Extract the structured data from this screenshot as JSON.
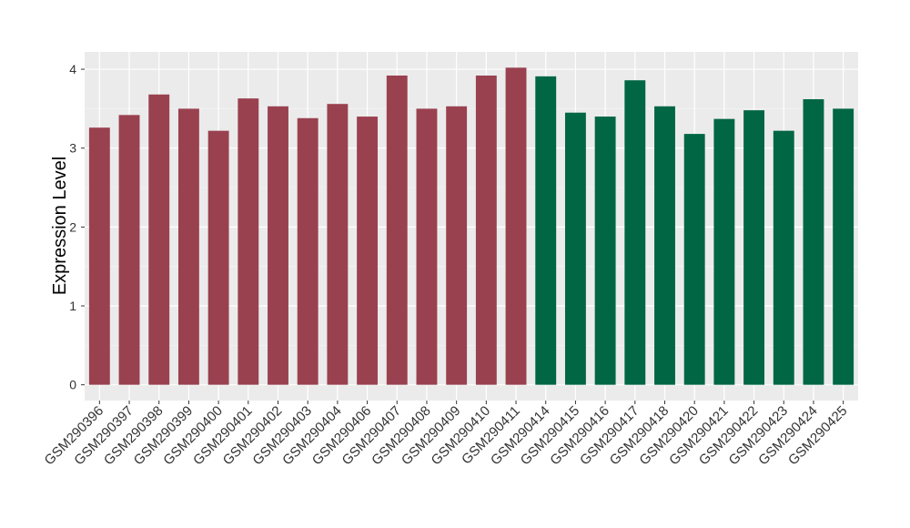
{
  "chart_data": {
    "type": "bar",
    "y_label": "Expression Level",
    "categories": [
      "GSM290396",
      "GSM290397",
      "GSM290398",
      "GSM290399",
      "GSM290400",
      "GSM290401",
      "GSM290402",
      "GSM290403",
      "GSM290404",
      "GSM290406",
      "GSM290407",
      "GSM290408",
      "GSM290409",
      "GSM290410",
      "GSM290411",
      "GSM290414",
      "GSM290415",
      "GSM290416",
      "GSM290417",
      "GSM290418",
      "GSM290420",
      "GSM290421",
      "GSM290422",
      "GSM290423",
      "GSM290424",
      "GSM290425"
    ],
    "values": [
      3.26,
      3.42,
      3.68,
      3.5,
      3.22,
      3.63,
      3.53,
      3.38,
      3.56,
      3.4,
      3.92,
      3.5,
      3.53,
      3.92,
      4.02,
      3.91,
      3.45,
      3.4,
      3.86,
      3.53,
      3.18,
      3.37,
      3.48,
      3.22,
      3.62,
      3.5
    ],
    "colors": [
      "#9a4150",
      "#9a4150",
      "#9a4150",
      "#9a4150",
      "#9a4150",
      "#9a4150",
      "#9a4150",
      "#9a4150",
      "#9a4150",
      "#9a4150",
      "#9a4150",
      "#9a4150",
      "#9a4150",
      "#9a4150",
      "#9a4150",
      "#006644",
      "#006644",
      "#006644",
      "#006644",
      "#006644",
      "#006644",
      "#006644",
      "#006644",
      "#006644",
      "#006644",
      "#006644"
    ],
    "ylim": [
      -0.2,
      4.22
    ],
    "yticks": [
      0,
      1,
      2,
      3,
      4
    ],
    "grid": true
  }
}
